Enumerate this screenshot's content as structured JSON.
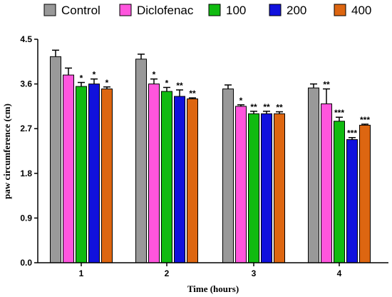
{
  "chart_data": {
    "type": "bar",
    "xlabel": "Time (hours)",
    "ylabel": "paw circumference (cm)",
    "categories": [
      "1",
      "2",
      "3",
      "4"
    ],
    "ylim": [
      0,
      4.5
    ],
    "yticks": [
      "0.0",
      "0.9",
      "1.8",
      "2.7",
      "3.6",
      "4.5"
    ],
    "yticks_values": [
      0,
      0.9,
      1.8,
      2.7,
      3.6,
      4.5
    ],
    "legend_position": "top",
    "series": [
      {
        "name": "Control",
        "color": "#999999",
        "values": [
          4.15,
          4.1,
          3.5,
          3.52
        ],
        "errors": [
          0.13,
          0.1,
          0.08,
          0.08
        ],
        "labels": [
          "",
          "",
          "",
          ""
        ]
      },
      {
        "name": "Diclofenac",
        "color": "#ff55dd",
        "values": [
          3.78,
          3.6,
          3.15,
          3.2
        ],
        "errors": [
          0.14,
          0.1,
          0.03,
          0.3
        ],
        "labels": [
          "",
          "*",
          "*",
          "**"
        ]
      },
      {
        "name": "100",
        "color": "#11bb11",
        "values": [
          3.55,
          3.45,
          3.0,
          2.85
        ],
        "errors": [
          0.08,
          0.08,
          0.05,
          0.08
        ],
        "labels": [
          "*",
          "*",
          "**",
          "***"
        ]
      },
      {
        "name": "200",
        "color": "#1111dd",
        "values": [
          3.6,
          3.35,
          3.0,
          2.48
        ],
        "errors": [
          0.1,
          0.13,
          0.05,
          0.04
        ],
        "labels": [
          "*",
          "**",
          "**",
          "***"
        ]
      },
      {
        "name": "400",
        "color": "#dd6611",
        "values": [
          3.5,
          3.3,
          3.0,
          2.77
        ],
        "errors": [
          0.04,
          0.02,
          0.04,
          0.02
        ],
        "labels": [
          "*",
          "**",
          "**",
          "***"
        ]
      }
    ]
  }
}
